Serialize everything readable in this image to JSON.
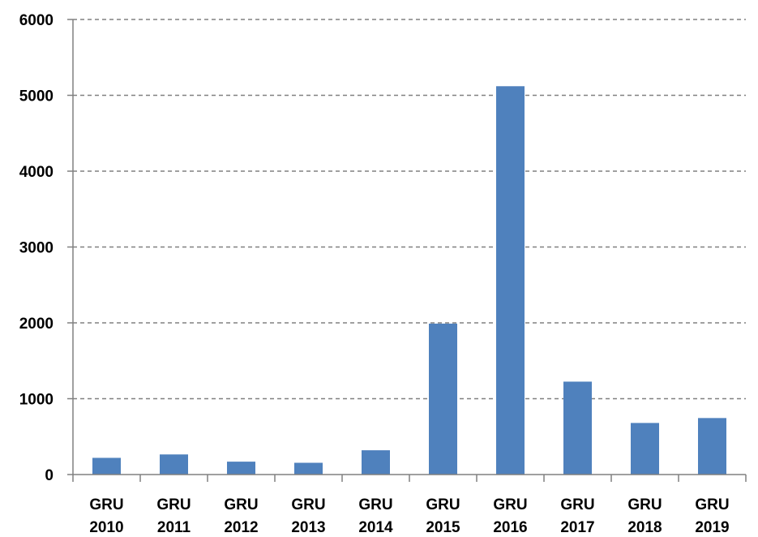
{
  "chart_data": {
    "type": "bar",
    "title": "",
    "xlabel": "",
    "ylabel": "",
    "categories": [
      [
        "GRU",
        "2010"
      ],
      [
        "GRU",
        "2011"
      ],
      [
        "GRU",
        "2012"
      ],
      [
        "GRU",
        "2013"
      ],
      [
        "GRU",
        "2014"
      ],
      [
        "GRU",
        "2015"
      ],
      [
        "GRU",
        "2016"
      ],
      [
        "GRU",
        "2017"
      ],
      [
        "GRU",
        "2018"
      ],
      [
        "GRU",
        "2019"
      ]
    ],
    "values": [
      220,
      265,
      170,
      155,
      320,
      1990,
      5120,
      1225,
      680,
      745
    ],
    "ylim": [
      0,
      6000
    ],
    "yticks": [
      "0",
      "1000",
      "2000",
      "3000",
      "4000",
      "5000",
      "6000"
    ],
    "grid": true,
    "legend": "none",
    "bar_color": "#4F81BD",
    "grid_color": "#808080"
  }
}
